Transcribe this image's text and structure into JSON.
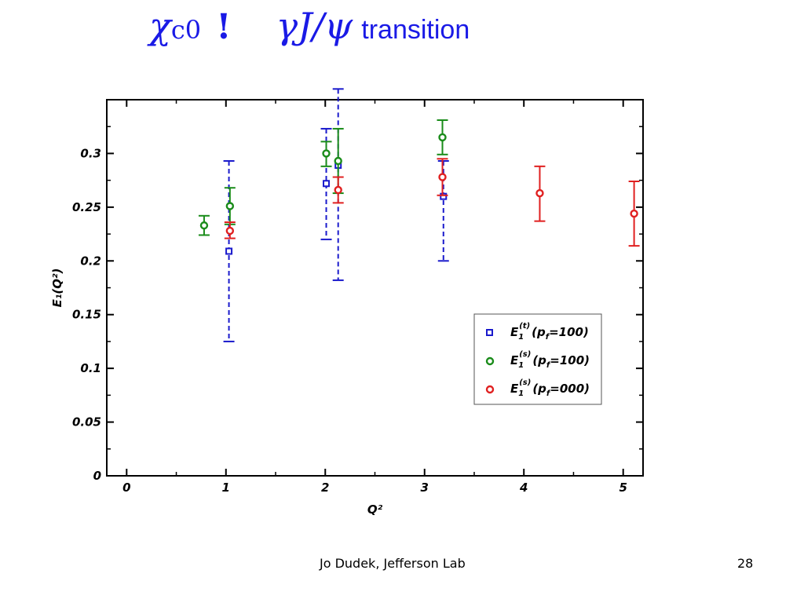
{
  "slide": {
    "title": {
      "from_symbol": "χ",
      "from_sub": "c0",
      "arrow": "!",
      "to_symbol": "γJ/ψ",
      "word": "transition"
    },
    "footer_author": "Jo Dudek, Jefferson Lab",
    "page_number": "28"
  },
  "chart_data": {
    "type": "scatter",
    "xlabel": "Q²",
    "ylabel": "E₁(Q²)",
    "xlim": [
      -0.2,
      5.2
    ],
    "ylim": [
      0,
      0.35
    ],
    "x_ticks": [
      "0",
      "1",
      "2",
      "3",
      "4",
      "5"
    ],
    "y_ticks": [
      "0",
      "0.05",
      "0.1",
      "0.15",
      "0.2",
      "0.25",
      "0.3"
    ],
    "grid": false,
    "legend_position": "lower-right",
    "series": [
      {
        "legend": {
          "base": "E",
          "sub": "1",
          "sup": "(t)",
          "arg": "(p",
          "arg_sub": "f",
          "arg_rest": "=100)"
        },
        "color": "#1a1acc",
        "marker": "square",
        "error_style": "dashed",
        "points": [
          {
            "x": 1.03,
            "y": 0.209,
            "lo": 0.125,
            "hi": 0.293
          },
          {
            "x": 2.01,
            "y": 0.272,
            "lo": 0.22,
            "hi": 0.323
          },
          {
            "x": 2.13,
            "y": 0.289,
            "lo": 0.182,
            "hi": 0.36
          },
          {
            "x": 3.19,
            "y": 0.26,
            "lo": 0.2,
            "hi": 0.293
          }
        ]
      },
      {
        "legend": {
          "base": "E",
          "sub": "1",
          "sup": "(s)",
          "arg": "(p",
          "arg_sub": "f",
          "arg_rest": "=100)"
        },
        "color": "#1a8c1a",
        "marker": "circle",
        "error_style": "solid",
        "points": [
          {
            "x": 0.78,
            "y": 0.233,
            "lo": 0.224,
            "hi": 0.242
          },
          {
            "x": 1.04,
            "y": 0.251,
            "lo": 0.234,
            "hi": 0.268
          },
          {
            "x": 2.01,
            "y": 0.3,
            "lo": 0.288,
            "hi": 0.311
          },
          {
            "x": 2.13,
            "y": 0.293,
            "lo": 0.263,
            "hi": 0.323
          },
          {
            "x": 3.18,
            "y": 0.315,
            "lo": 0.299,
            "hi": 0.331
          }
        ]
      },
      {
        "legend": {
          "base": "E",
          "sub": "1",
          "sup": "(s)",
          "arg": "(p",
          "arg_sub": "f",
          "arg_rest": "=000)"
        },
        "color": "#e02020",
        "marker": "circle",
        "error_style": "solid",
        "points": [
          {
            "x": 1.04,
            "y": 0.228,
            "lo": 0.221,
            "hi": 0.236
          },
          {
            "x": 2.13,
            "y": 0.266,
            "lo": 0.254,
            "hi": 0.278
          },
          {
            "x": 3.18,
            "y": 0.278,
            "lo": 0.261,
            "hi": 0.295
          },
          {
            "x": 4.16,
            "y": 0.263,
            "lo": 0.237,
            "hi": 0.288
          },
          {
            "x": 5.11,
            "y": 0.244,
            "lo": 0.214,
            "hi": 0.274
          }
        ]
      }
    ]
  }
}
